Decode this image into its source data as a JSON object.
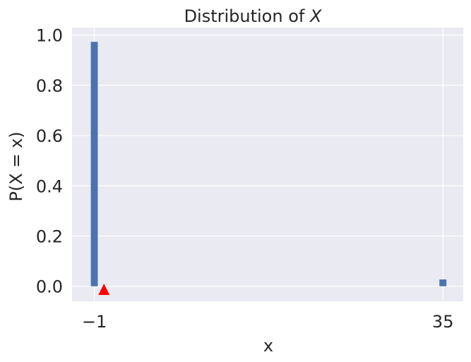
{
  "chart_data": {
    "type": "bar",
    "title": "Distribution of ",
    "title_var": "X",
    "xlabel": "x",
    "ylabel": "P(X = x)",
    "x_ticks": [
      {
        "value": -1,
        "label": "−1"
      },
      {
        "value": 35,
        "label": "35"
      }
    ],
    "y_ticks": [
      {
        "value": 0.0,
        "label": "0.0"
      },
      {
        "value": 0.2,
        "label": "0.2"
      },
      {
        "value": 0.4,
        "label": "0.4"
      },
      {
        "value": 0.6,
        "label": "0.6"
      },
      {
        "value": 0.8,
        "label": "0.8"
      },
      {
        "value": 1.0,
        "label": "1.0"
      }
    ],
    "xlim": [
      -3.3,
      37.1
    ],
    "ylim": [
      -0.06,
      1.03
    ],
    "bars": [
      {
        "x": -1,
        "p": 0.973
      },
      {
        "x": 35,
        "p": 0.027
      }
    ],
    "bar_width": 0.72,
    "marker": {
      "x": 0,
      "y": -0.015,
      "shape": "triangle"
    },
    "grid": true,
    "colors": {
      "background": "#eaeaf2",
      "grid": "#ffffff",
      "bar": "#4c72b0",
      "marker": "#ff0000",
      "text": "#262626"
    }
  }
}
